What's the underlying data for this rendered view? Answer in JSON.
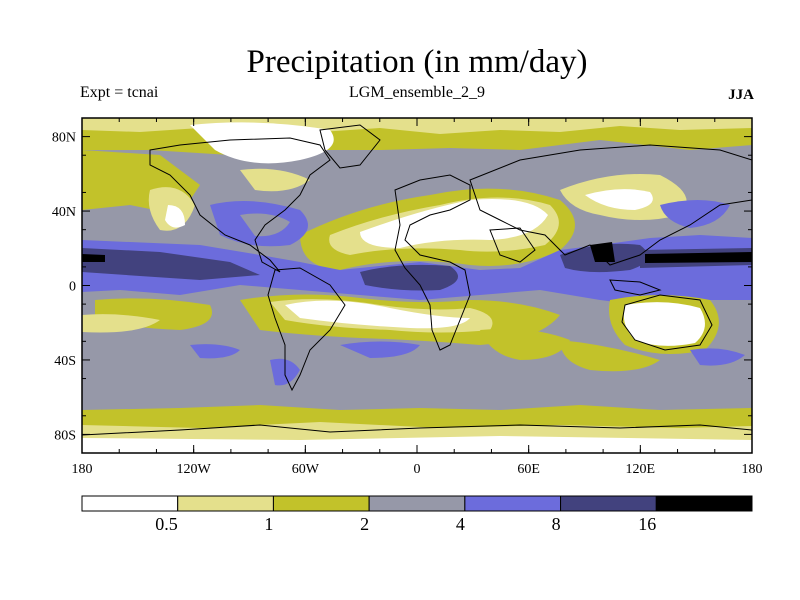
{
  "title": "Precipitation (in mm/day)",
  "expt": "Expt = tcnai",
  "ensemble": "LGM_ensemble_2_9",
  "season": "JJA",
  "map": {
    "lon_range": [
      -180,
      180
    ],
    "lat_range": [
      -90,
      90
    ],
    "lat_ticks": [
      {
        "value": 80,
        "label": "80N"
      },
      {
        "value": 40,
        "label": "40N"
      },
      {
        "value": 0,
        "label": "0"
      },
      {
        "value": -40,
        "label": "40S"
      },
      {
        "value": -80,
        "label": "80S"
      }
    ],
    "lon_ticks": [
      {
        "value": -180,
        "label": "180"
      },
      {
        "value": -120,
        "label": "120W"
      },
      {
        "value": -60,
        "label": "60W"
      },
      {
        "value": 0,
        "label": "0"
      },
      {
        "value": 60,
        "label": "60E"
      },
      {
        "value": 120,
        "label": "120E"
      },
      {
        "value": 180,
        "label": "180"
      }
    ]
  },
  "colorbar": {
    "colors": [
      "#ffffff",
      "#e4e08c",
      "#c2c22a",
      "#9698a8",
      "#6c6cdc",
      "#42427e",
      "#000000"
    ],
    "thresholds": [
      "0.5",
      "1",
      "2",
      "4",
      "8",
      "16"
    ]
  }
}
